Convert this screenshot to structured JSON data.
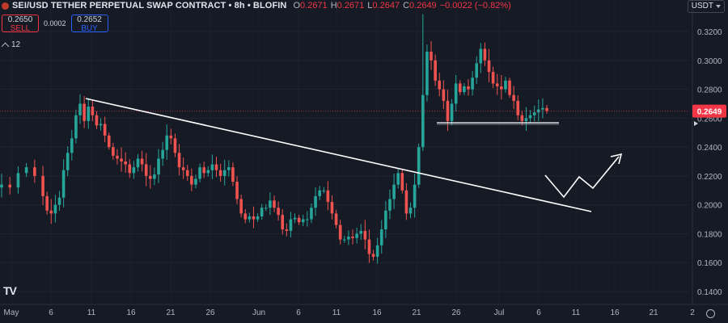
{
  "header": {
    "title": "SEI/USD TETHER PERPETUAL SWAP CONTRACT • 8h • BLOFIN",
    "ohlc": [
      {
        "k": "O",
        "v": "0.2671"
      },
      {
        "k": "H",
        "v": "0.2671"
      },
      {
        "k": "L",
        "v": "0.2647"
      },
      {
        "k": "C",
        "v": "0.2649"
      }
    ],
    "change": "−0.0022 (−0.82%)"
  },
  "trade": {
    "sell_price": "0.2650",
    "sell_label": "SELL",
    "spread": "0.0002",
    "buy_price": "0.2652",
    "buy_label": "BUY"
  },
  "indicators": {
    "count": "12"
  },
  "currency": "USDT",
  "logo_text": "TV",
  "colors": {
    "up": "#26a69a",
    "down": "#ef5350",
    "bg": "#161a25",
    "current": "#f23645"
  },
  "chart_data": {
    "type": "candlestick",
    "y_ticks": [
      "0.3200",
      "0.3000",
      "0.2800",
      "0.2600",
      "0.2400",
      "0.2200",
      "0.2000",
      "0.1800",
      "0.1600",
      "0.1400"
    ],
    "x_ticks": [
      "May",
      "6",
      "11",
      "16",
      "21",
      "26",
      "Jun",
      "6",
      "11",
      "16",
      "21",
      "26",
      "Jul",
      "6",
      "11",
      "16",
      "21",
      "2"
    ],
    "current_price": "0.2649",
    "ylim": [
      0.13,
      0.335
    ],
    "close_path": [
      [
        1,
        0.214
      ],
      [
        3,
        0.212
      ],
      [
        5,
        0.222
      ],
      [
        7,
        0.226
      ],
      [
        9,
        0.22
      ],
      [
        11,
        0.206
      ],
      [
        12,
        0.196
      ],
      [
        13,
        0.194
      ],
      [
        14,
        0.2
      ],
      [
        15,
        0.205
      ],
      [
        16,
        0.224
      ],
      [
        17,
        0.236
      ],
      [
        18,
        0.246
      ],
      [
        19,
        0.262
      ],
      [
        20,
        0.27
      ],
      [
        21,
        0.258
      ],
      [
        22,
        0.268
      ],
      [
        23,
        0.262
      ],
      [
        24,
        0.255
      ],
      [
        25,
        0.256
      ],
      [
        26,
        0.248
      ],
      [
        27,
        0.24
      ],
      [
        28,
        0.234
      ],
      [
        29,
        0.232
      ],
      [
        30,
        0.23
      ],
      [
        31,
        0.228
      ],
      [
        32,
        0.222
      ],
      [
        33,
        0.226
      ],
      [
        34,
        0.232
      ],
      [
        35,
        0.228
      ],
      [
        36,
        0.22
      ],
      [
        37,
        0.218
      ],
      [
        38,
        0.221
      ],
      [
        39,
        0.232
      ],
      [
        40,
        0.238
      ],
      [
        41,
        0.248
      ],
      [
        42,
        0.246
      ],
      [
        43,
        0.236
      ],
      [
        44,
        0.226
      ],
      [
        45,
        0.224
      ],
      [
        46,
        0.22
      ],
      [
        47,
        0.214
      ],
      [
        48,
        0.218
      ],
      [
        49,
        0.226
      ],
      [
        50,
        0.222
      ],
      [
        51,
        0.224
      ],
      [
        52,
        0.228
      ],
      [
        53,
        0.224
      ],
      [
        54,
        0.22
      ],
      [
        55,
        0.224
      ],
      [
        56,
        0.226
      ],
      [
        57,
        0.216
      ],
      [
        58,
        0.204
      ],
      [
        59,
        0.194
      ],
      [
        60,
        0.19
      ],
      [
        61,
        0.192
      ],
      [
        62,
        0.19
      ],
      [
        63,
        0.192
      ],
      [
        64,
        0.198
      ],
      [
        65,
        0.198
      ],
      [
        66,
        0.203
      ],
      [
        67,
        0.198
      ],
      [
        68,
        0.193
      ],
      [
        69,
        0.183
      ],
      [
        70,
        0.182
      ],
      [
        71,
        0.19
      ],
      [
        72,
        0.191
      ],
      [
        73,
        0.188
      ],
      [
        74,
        0.19
      ],
      [
        75,
        0.19
      ],
      [
        76,
        0.198
      ],
      [
        77,
        0.206
      ],
      [
        78,
        0.21
      ],
      [
        79,
        0.21
      ],
      [
        80,
        0.202
      ],
      [
        81,
        0.194
      ],
      [
        82,
        0.186
      ],
      [
        83,
        0.176
      ],
      [
        84,
        0.176
      ],
      [
        85,
        0.178
      ],
      [
        86,
        0.177
      ],
      [
        87,
        0.18
      ],
      [
        88,
        0.182
      ],
      [
        89,
        0.176
      ],
      [
        90,
        0.166
      ],
      [
        91,
        0.164
      ],
      [
        92,
        0.172
      ],
      [
        93,
        0.183
      ],
      [
        94,
        0.196
      ],
      [
        95,
        0.204
      ],
      [
        96,
        0.214
      ],
      [
        97,
        0.222
      ],
      [
        98,
        0.21
      ],
      [
        99,
        0.194
      ],
      [
        100,
        0.198
      ],
      [
        101,
        0.214
      ],
      [
        102,
        0.24
      ],
      [
        103,
        0.276
      ],
      [
        104,
        0.306
      ],
      [
        105,
        0.3
      ],
      [
        106,
        0.286
      ],
      [
        107,
        0.28
      ],
      [
        108,
        0.272
      ],
      [
        109,
        0.258
      ],
      [
        110,
        0.27
      ],
      [
        111,
        0.284
      ],
      [
        112,
        0.278
      ],
      [
        113,
        0.282
      ],
      [
        114,
        0.28
      ],
      [
        115,
        0.288
      ],
      [
        116,
        0.298
      ],
      [
        117,
        0.308
      ],
      [
        118,
        0.3
      ],
      [
        119,
        0.292
      ],
      [
        120,
        0.284
      ],
      [
        121,
        0.282
      ],
      [
        122,
        0.28
      ],
      [
        123,
        0.286
      ],
      [
        124,
        0.276
      ],
      [
        125,
        0.272
      ],
      [
        126,
        0.262
      ],
      [
        127,
        0.258
      ],
      [
        128,
        0.26
      ],
      [
        129,
        0.262
      ],
      [
        130,
        0.264
      ],
      [
        131,
        0.266
      ],
      [
        132,
        0.267
      ],
      [
        133,
        0.265
      ]
    ]
  }
}
